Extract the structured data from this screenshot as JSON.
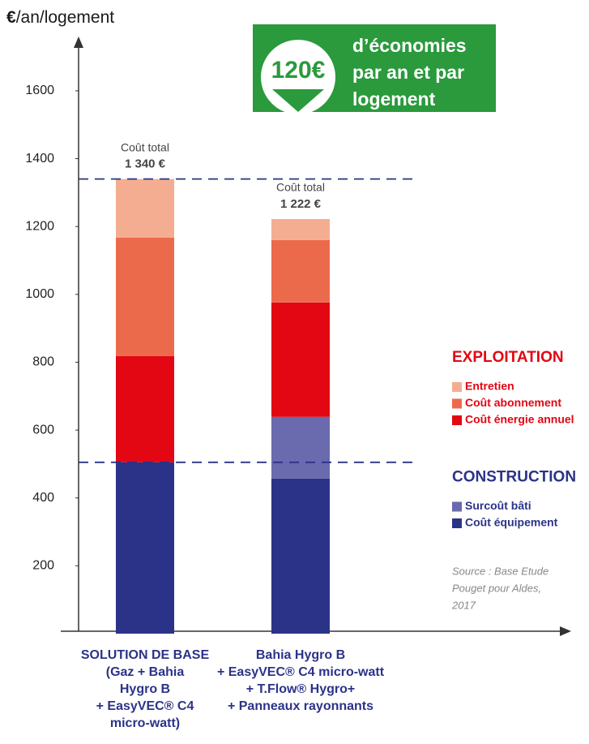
{
  "chart_data": {
    "type": "stacked_bar",
    "y_label_unit": "€",
    "y_label": "/an/logement",
    "categories": [
      [
        "SOLUTION DE BASE",
        "(Gaz + Bahia",
        "Hygro B",
        "+ EasyVEC® C4",
        "micro-watt)"
      ],
      [
        "Bahia Hygro B",
        "+ EasyVEC® C4 micro-watt",
        "+ T.Flow® Hygro+",
        "+ Panneaux rayonnants"
      ]
    ],
    "series": [
      {
        "name": "Coût équipement",
        "color": "#2b3388",
        "group": "CONSTRUCTION",
        "values": [
          505,
          457
        ]
      },
      {
        "name": "Surcoût bâti",
        "color": "#6a6aae",
        "group": "CONSTRUCTION",
        "values": [
          null,
          182
        ]
      },
      {
        "name": "Coût énergie annuel",
        "color": "#e30613",
        "group": "EXPLOITATION",
        "values": [
          313,
          337
        ]
      },
      {
        "name": "Coût abonnement",
        "color": "#ec6a4c",
        "group": "EXPLOITATION",
        "values": [
          349,
          184
        ]
      },
      {
        "name": "Entretien",
        "color": "#f5ad92",
        "group": "EXPLOITATION",
        "values": [
          173,
          62
        ]
      }
    ],
    "total_caption": "Coût total",
    "totals": [
      1340,
      1222
    ],
    "total_labels": [
      "1 340 €",
      "1 222 €"
    ],
    "legend_groups": [
      {
        "title": "EXPLOITATION",
        "color": "#e30613"
      },
      {
        "title": "CONSTRUCTION",
        "color": "#2b3388"
      }
    ],
    "reference_lines": [
      505,
      1340
    ],
    "ylim": [
      0,
      1760
    ],
    "yticks": [
      200,
      400,
      600,
      800,
      1000,
      1200,
      1400,
      1600
    ],
    "grid": false,
    "callout": {
      "amount": "120€",
      "lines": [
        "d’économies",
        "par an et par",
        "logement"
      ]
    },
    "source": [
      "Source : Base Etude",
      "Pouget pour Aldes,",
      "2017"
    ]
  }
}
